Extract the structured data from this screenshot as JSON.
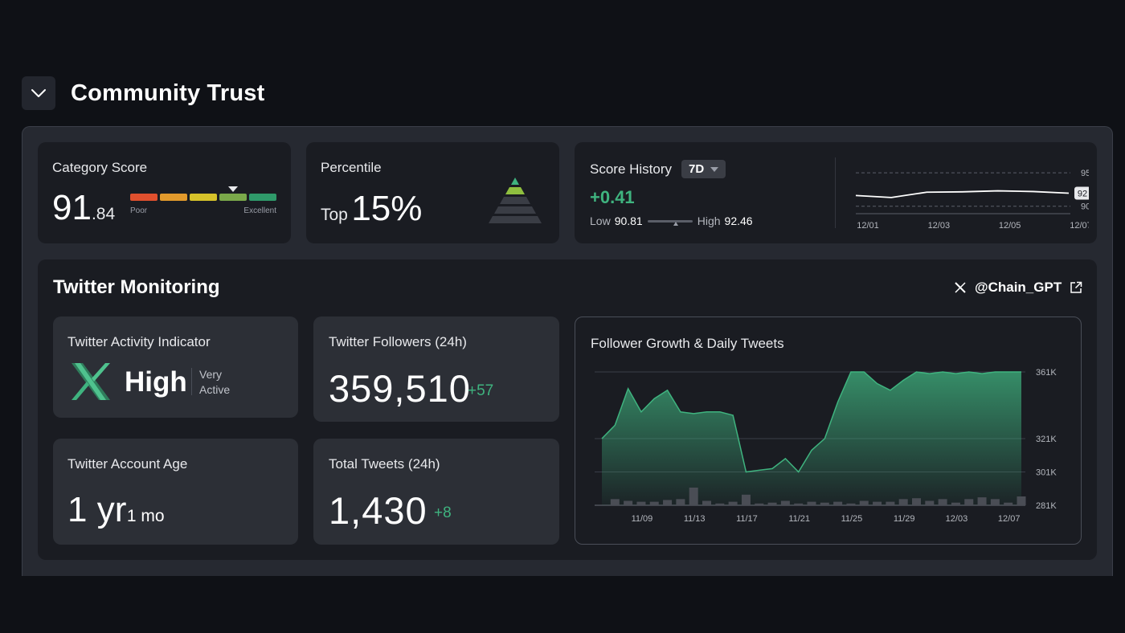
{
  "header": {
    "title": "Community Trust"
  },
  "category_score": {
    "label": "Category Score",
    "score_int": "91",
    "score_dec": ".84",
    "scale_low": "Poor",
    "scale_high": "Excellent",
    "colors": [
      "#e0502e",
      "#e29a2c",
      "#d6c22a",
      "#7aa84a",
      "#2f9a6a"
    ],
    "marker_segment": 3
  },
  "percentile": {
    "label": "Percentile",
    "prefix": "Top",
    "value": "15%"
  },
  "score_history": {
    "label": "Score History",
    "range": "7D",
    "change": "+0.41",
    "low_label": "Low",
    "low_value": "90.81",
    "high_label": "High",
    "high_value": "92.46",
    "current_badge": "92",
    "chart_data": {
      "type": "line",
      "x": [
        "12/01",
        "12/02",
        "12/03",
        "12/04",
        "12/05",
        "12/06",
        "12/07"
      ],
      "values": [
        91.6,
        91.3,
        92.1,
        92.15,
        92.3,
        92.2,
        91.95
      ],
      "x_tick_labels": [
        "12/01",
        "12/03",
        "12/05",
        "12/07"
      ],
      "y_tick_labels": [
        "95",
        "90"
      ],
      "ylim": [
        89,
        95.5
      ]
    }
  },
  "twitter": {
    "title": "Twitter Monitoring",
    "handle": "@Chain_GPT",
    "activity": {
      "label": "Twitter Activity Indicator",
      "level": "High",
      "desc1": "Very",
      "desc2": "Active"
    },
    "followers": {
      "label": "Twitter Followers (24h)",
      "value": "359,510",
      "delta": "+57"
    },
    "age": {
      "label": "Twitter Account Age",
      "years": "1 yr",
      "months": "1 mo"
    },
    "tweets": {
      "label": "Total Tweets (24h)",
      "value": "1,430",
      "delta": "+8"
    }
  },
  "follower_chart": {
    "title": "Follower Growth & Daily Tweets",
    "chart_data": {
      "type": "area",
      "x_tick_labels": [
        "11/09",
        "11/13",
        "11/17",
        "11/21",
        "11/25",
        "11/29",
        "12/03",
        "12/07"
      ],
      "y_tick_labels": [
        "361K",
        "321K",
        "301K",
        "281K"
      ],
      "ylim": [
        281000,
        361000
      ],
      "followers": [
        321000,
        329000,
        351000,
        337000,
        345000,
        350000,
        337000,
        336000,
        337000,
        337000,
        335000,
        301000,
        302000,
        303000,
        309000,
        301000,
        314000,
        321000,
        343000,
        361000,
        361000,
        354000,
        350000,
        356000,
        361000,
        360000,
        361000,
        360000,
        361000,
        360000,
        361000,
        361000,
        361000
      ],
      "daily_tweets": [
        0,
        7,
        5,
        4,
        4,
        6,
        7,
        20,
        5,
        2,
        4,
        12,
        2,
        3,
        5,
        2,
        4,
        3,
        4,
        2,
        5,
        4,
        4,
        7,
        8,
        5,
        7,
        3,
        7,
        9,
        7,
        3,
        10
      ],
      "tweets_max": 20
    }
  }
}
